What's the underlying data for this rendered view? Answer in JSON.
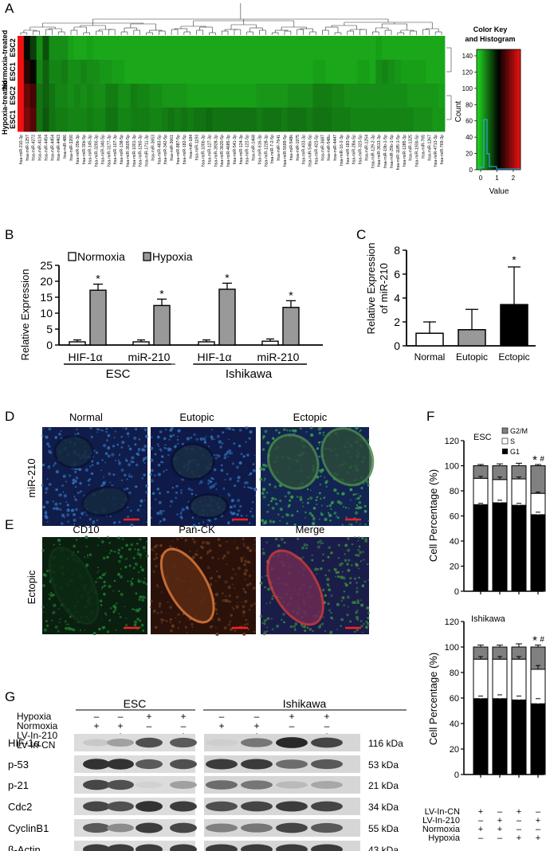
{
  "panel_letters": [
    "A",
    "B",
    "C",
    "D",
    "E",
    "F",
    "G"
  ],
  "heatmap": {
    "rows": [
      {
        "label": "ESC2",
        "group": "Normoxia-treated"
      },
      {
        "label": "ESC1",
        "group": "Normoxia-treated"
      },
      {
        "label": "ESC2",
        "group": "Hypoxia-treated"
      },
      {
        "label": "ESC1",
        "group": "Hypoxia-treated"
      }
    ],
    "groups": [
      "Normoxia-treated",
      "Hypoxia-treated"
    ],
    "columns": [
      "hsa-miR-210-3p",
      "hsa-miR-1257",
      "hsa-miR-4272",
      "hsa-miR-4134",
      "hsa-miR-4454",
      "hsa-miR-4454",
      "hsa-miR-4463",
      "hsa-miR-486",
      "hsa-miR-3200",
      "hsa-miR-29b-3p",
      "hsa-miR-30b-5p",
      "hsa-miR-145-3p",
      "hsa-miR-3200-3p",
      "hsa-miR-340-5p",
      "hsa-miR-3177-3p",
      "hsa-miR-107-3p",
      "hsa-miR-138-5p",
      "hsa-miR-3605-5p",
      "hsa-miR-1001-3p",
      "hsa-miR-1260-3p",
      "hsa-miR-1711-3p",
      "hsa-miR-3653",
      "hsa-miR-483-5p",
      "hsa-miR-342-5p",
      "hsa-miR-3661",
      "hsa-miR-887-5p",
      "hsa-miR-182-5p",
      "hsa-miR-184",
      "hsa-miR-1193",
      "hsa-miR-100b-3p",
      "hsa-miR-127-3p",
      "hsa-miR-3928-3p",
      "hsa-miR-3620-5p",
      "hsa-miR-4685-3p",
      "hsa-miR-541-3p",
      "hsa-miR-124-3p",
      "hsa-miR-122-5p",
      "hsa-miR-1468",
      "hsa-miR-616-3p",
      "hsa-miR-1228-3p",
      "hsa-miR-7-2-5p",
      "hsa-miR-7641",
      "hsa-miR-5699-5p",
      "hsa-miR-548k",
      "hsa-miR-1975",
      "hsa-miR-433-3p",
      "hsa-miR-548x-5p",
      "hsa-miR-423-5p",
      "hsa-miR-3687",
      "hsa-miR-548u",
      "hsa-miR-4447",
      "hsa-miR-16-2-3p",
      "hsa-miR-183-5p",
      "hsa-miR-28a-5p",
      "hsa-miR-323-5p",
      "hsa-miR-1254",
      "hsa-miR-129-2-3p",
      "hsa-miR-3613-3p",
      "hsa-miR-19b-1-5p",
      "hsa-miR-29b-1-5p",
      "hsa-miR-1185-1-5p",
      "hsa-miR-1285-3p",
      "hsa-miR-1325",
      "hsa-miR-193b-5p",
      "hsa-miR-765",
      "hsa-miR-1267",
      "hsa-miR-4713-3p",
      "hsa-miR-769-3p"
    ],
    "values": [
      [
        2.5,
        1.2,
        0.9,
        0.45,
        0.8,
        0.45,
        0.45,
        0.45,
        0.35,
        0.3,
        0.3,
        0.35,
        0.3,
        0.3,
        0.3,
        0.3,
        0.3,
        0.3,
        0.3,
        0.3,
        0.3,
        0.3,
        0.3,
        0.3,
        0.3,
        0.3,
        0.3,
        0.3,
        0.3,
        0.3,
        0.3,
        0.3,
        0.3,
        0.3,
        0.3,
        0.3,
        0.3,
        0.3,
        0.3,
        0.3,
        0.3,
        0.3,
        0.3,
        0.3,
        0.3,
        0.3,
        0.3,
        0.3,
        0.3,
        0.3,
        0.3,
        0.3,
        0.3,
        0.3,
        0.3,
        0.3,
        0.3,
        0.35,
        0.3,
        0.3,
        0.3,
        0.3,
        0.3,
        0.3,
        0.3,
        0.3,
        0.3,
        0.3
      ],
      [
        2.5,
        1.5,
        1.2,
        0.5,
        0.7,
        0.5,
        0.5,
        0.55,
        0.45,
        0.45,
        0.5,
        0.45,
        0.45,
        0.4,
        0.4,
        0.35,
        0.35,
        0.3,
        0.3,
        0.3,
        0.3,
        0.3,
        0.3,
        0.3,
        0.3,
        0.3,
        0.3,
        0.3,
        0.3,
        0.3,
        0.3,
        0.3,
        0.3,
        0.3,
        0.3,
        0.3,
        0.3,
        0.3,
        0.3,
        0.3,
        0.3,
        0.3,
        0.3,
        0.3,
        0.3,
        0.3,
        0.3,
        0.35,
        0.35,
        0.3,
        0.3,
        0.3,
        0.3,
        0.3,
        0.35,
        0.35,
        0.3,
        0.45,
        0.5,
        0.45,
        0.4,
        0.35,
        0.35,
        0.35,
        0.35,
        0.3,
        0.3,
        0.3
      ],
      [
        2.5,
        1.8,
        1.6,
        0.6,
        0.7,
        0.6,
        0.5,
        0.5,
        0.45,
        0.5,
        0.45,
        0.5,
        0.45,
        0.45,
        0.55,
        0.55,
        0.45,
        0.45,
        0.55,
        0.5,
        0.5,
        0.45,
        0.45,
        0.4,
        0.4,
        0.4,
        0.4,
        0.35,
        0.35,
        0.35,
        0.35,
        0.35,
        0.35,
        0.35,
        0.35,
        0.35,
        0.35,
        0.35,
        0.4,
        0.4,
        0.4,
        0.4,
        0.4,
        0.45,
        0.45,
        0.45,
        0.45,
        0.55,
        0.55,
        0.55,
        0.5,
        0.5,
        0.45,
        0.45,
        0.45,
        0.45,
        0.45,
        0.45,
        0.45,
        0.45,
        0.45,
        0.45,
        0.4,
        0.4,
        0.4,
        0.4,
        0.4,
        0.35
      ],
      [
        2.5,
        1.9,
        1.7,
        0.6,
        0.75,
        0.6,
        0.55,
        0.55,
        0.5,
        0.5,
        0.5,
        0.55,
        0.5,
        0.5,
        0.6,
        0.6,
        0.5,
        0.5,
        0.55,
        0.55,
        0.55,
        0.5,
        0.5,
        0.55,
        0.6,
        0.55,
        0.6,
        0.55,
        0.6,
        0.6,
        0.65,
        0.6,
        0.6,
        0.6,
        0.6,
        0.6,
        0.6,
        0.6,
        0.55,
        0.6,
        0.6,
        0.6,
        0.55,
        0.6,
        0.6,
        0.6,
        0.55,
        0.6,
        0.6,
        0.6,
        0.55,
        0.55,
        0.55,
        0.5,
        0.5,
        0.5,
        0.5,
        0.5,
        0.5,
        0.5,
        0.5,
        0.5,
        0.5,
        0.45,
        0.45,
        0.45,
        0.4,
        0.4
      ]
    ],
    "color_key": {
      "title": "Color Key",
      "subtitle": "and Histogram",
      "xlabel": "Value",
      "ylabel": "Count",
      "xticks": [
        "0",
        "1",
        "2"
      ],
      "yticks": [
        "0",
        "20",
        "40",
        "60",
        "80",
        "100",
        "120",
        "140"
      ],
      "range": [
        0,
        2.5
      ],
      "colors": [
        "#22dd22",
        "#000000",
        "#ee1111"
      ]
    }
  },
  "panelB": {
    "legend": [
      "Normoxia",
      "Hypoxia"
    ],
    "ylabel": "Relative Expression",
    "yticks": [
      "0",
      "5",
      "10",
      "15",
      "20",
      "25"
    ],
    "ylim": [
      0,
      25
    ],
    "genes": [
      "HIF-1α",
      "miR-210",
      "HIF-1α",
      "miR-210"
    ],
    "groups": [
      "ESC",
      "Ishikawa"
    ],
    "normoxia": [
      1.0,
      1.0,
      1.0,
      1.2
    ],
    "normoxia_err": [
      0.6,
      0.6,
      0.6,
      0.7
    ],
    "hypoxia": [
      17.2,
      12.4,
      17.5,
      11.8
    ],
    "hypoxia_err": [
      1.9,
      2.0,
      1.9,
      2.1
    ],
    "star": "*"
  },
  "panelC": {
    "ylabel": "Relative Expression",
    "ylabel2": "of miR-210",
    "categories": [
      "Normal",
      "Eutopic",
      "Ectopic"
    ],
    "values": [
      1.05,
      1.35,
      3.45
    ],
    "errors": [
      0.95,
      1.7,
      3.15
    ],
    "yticks": [
      "0",
      "2",
      "4",
      "6",
      "8"
    ],
    "ylim": [
      0,
      8
    ],
    "star": "*"
  },
  "panelD": {
    "row_label": "miR-210",
    "columns": [
      "Normal",
      "Eutopic",
      "Ectopic"
    ]
  },
  "panelE": {
    "row_label": "Ectopic",
    "columns": [
      "CD10",
      "Pan-CK",
      "Merge"
    ]
  },
  "panelF": {
    "ylabel": "Cell Percentage (%)",
    "legend": [
      "G2/M",
      "S",
      "G1"
    ],
    "yticks": [
      "0",
      "20",
      "40",
      "60",
      "80",
      "100",
      "120"
    ],
    "ylim": [
      0,
      120
    ],
    "charts": [
      {
        "title": "ESC",
        "g1": [
          69,
          70.5,
          68.5,
          61
        ],
        "s": [
          21,
          18.5,
          21,
          17
        ],
        "g2m": [
          10,
          11,
          10.5,
          22
        ],
        "g1_err": [
          1,
          2,
          1.5,
          2
        ],
        "s_err": [
          1.5,
          2,
          1.5,
          1
        ],
        "top_err": [
          1,
          1.5,
          2,
          1
        ],
        "star": "*",
        "hash": "#"
      },
      {
        "title": "Ishikawa",
        "g1": [
          59.5,
          59.5,
          58.5,
          55.5
        ],
        "s": [
          31,
          31,
          32,
          27
        ],
        "g2m": [
          9.5,
          9.5,
          9.5,
          17.5
        ],
        "g1_err": [
          2,
          3,
          3,
          4
        ],
        "s_err": [
          2,
          2,
          2,
          3
        ],
        "top_err": [
          1.5,
          1.5,
          2.5,
          1.5
        ],
        "star": "*",
        "hash": "#"
      }
    ],
    "conditions": [
      {
        "label": "LV-In-CN",
        "signs": [
          "+",
          "–",
          "+",
          "–"
        ]
      },
      {
        "label": "LV-In-210",
        "signs": [
          "–",
          "+",
          "–",
          "+"
        ]
      },
      {
        "label": "Normoxia",
        "signs": [
          "+",
          "+",
          "–",
          "–"
        ]
      },
      {
        "label": "Hypoxia",
        "signs": [
          "–",
          "–",
          "+",
          "+"
        ]
      }
    ]
  },
  "panelG": {
    "groups": [
      "ESC",
      "Ishikawa"
    ],
    "conditions": [
      {
        "label": "Hypoxia",
        "signs": [
          "–",
          "–",
          "+",
          "+"
        ]
      },
      {
        "label": "Normoxia",
        "signs": [
          "+",
          "+",
          "–",
          "–"
        ]
      },
      {
        "label": "LV-In-210",
        "signs": [
          "–",
          "+",
          "–",
          "+"
        ]
      },
      {
        "label": "LV-In-CN",
        "signs": [
          "+",
          "–",
          "+",
          "–"
        ]
      }
    ],
    "bands": [
      {
        "label": "HIF-1α",
        "kda": "116 kDa",
        "esc": [
          0.15,
          0.35,
          0.75,
          0.7
        ],
        "ish": [
          0.1,
          0.55,
          0.95,
          0.8
        ]
      },
      {
        "label": "p-53",
        "kda": "53 kDa",
        "esc": [
          0.9,
          0.9,
          0.7,
          0.75
        ],
        "ish": [
          0.85,
          0.85,
          0.6,
          0.7
        ]
      },
      {
        "label": "p-21",
        "kda": "21 kDa",
        "esc": [
          0.8,
          0.75,
          0.1,
          0.35
        ],
        "ish": [
          0.6,
          0.55,
          0.2,
          0.3
        ]
      },
      {
        "label": "Cdc2",
        "kda": "34 kDa",
        "esc": [
          0.8,
          0.75,
          0.9,
          0.85
        ],
        "ish": [
          0.75,
          0.8,
          0.85,
          0.8
        ]
      },
      {
        "label": "CyclinB1",
        "kda": "55 kDa",
        "esc": [
          0.7,
          0.45,
          0.85,
          0.8
        ],
        "ish": [
          0.5,
          0.55,
          0.8,
          0.7
        ]
      },
      {
        "label": "β-Actin",
        "kda": "43 kDa",
        "esc": [
          0.85,
          0.85,
          0.85,
          0.85
        ],
        "ish": [
          0.85,
          0.85,
          0.85,
          0.85
        ]
      }
    ]
  }
}
